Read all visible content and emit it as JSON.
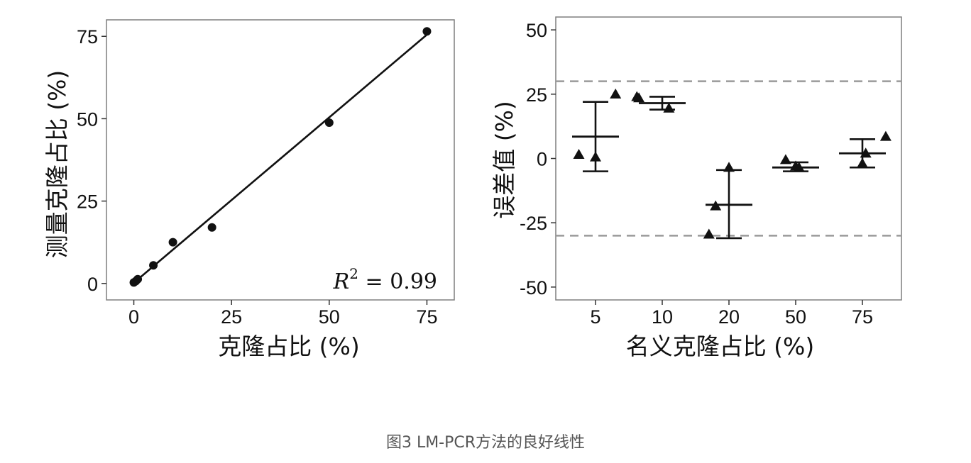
{
  "caption": "图3 LM-PCR方法的良好线性",
  "colors": {
    "ink": "#111111",
    "frame": "#7f7f7f",
    "dashed": "#999999",
    "caption": "#555555"
  },
  "chart_data": [
    {
      "type": "scatter",
      "xlabel": "克隆占比 (%)",
      "ylabel": "测量克隆占比 (%)",
      "xlim": [
        -7,
        82
      ],
      "ylim": [
        -5,
        80
      ],
      "xticks": [
        0,
        25,
        50,
        75
      ],
      "yticks": [
        0,
        25,
        50,
        75
      ],
      "tick_labels_x": [
        "0",
        "25",
        "50",
        "75"
      ],
      "tick_labels_y": [
        "0",
        "25",
        "50",
        "75"
      ],
      "points": [
        {
          "x": 0,
          "y": 0.3
        },
        {
          "x": 0.5,
          "y": 0.7
        },
        {
          "x": 1,
          "y": 1.3
        },
        {
          "x": 5,
          "y": 5.5
        },
        {
          "x": 10,
          "y": 12.5
        },
        {
          "x": 20,
          "y": 17
        },
        {
          "x": 50,
          "y": 48.8
        },
        {
          "x": 75,
          "y": 76.5
        }
      ],
      "fit_line": {
        "x": [
          0,
          75
        ],
        "y": [
          0.2,
          75.5
        ]
      },
      "annotation": {
        "base": "R",
        "sup": "2",
        "text": " = 0.99"
      },
      "grid": false
    },
    {
      "type": "scatter",
      "xlabel": "名义克隆占比 (%)",
      "ylabel": "误差值 (%)",
      "categories": [
        "5",
        "10",
        "20",
        "50",
        "75"
      ],
      "ylim": [
        -55,
        55
      ],
      "yticks": [
        50,
        25,
        0,
        -25,
        -50
      ],
      "tick_labels_y": [
        "50",
        "25",
        "0",
        "-25",
        "-50"
      ],
      "reference_lines": [
        30,
        -30
      ],
      "groups": [
        {
          "category": "5",
          "points": [
            {
              "offset": -0.25,
              "y": 1.5
            },
            {
              "offset": 0,
              "y": 0.5
            },
            {
              "offset": 0.3,
              "y": 25
            }
          ],
          "mean": 8.5,
          "upper": 22,
          "lower": -5
        },
        {
          "category": "10",
          "points": [
            {
              "offset": -0.38,
              "y": 24
            },
            {
              "offset": -0.35,
              "y": 23.5
            },
            {
              "offset": 0.1,
              "y": 19.5
            }
          ],
          "mean": 21.5,
          "upper": 24,
          "lower": 19
        },
        {
          "category": "20",
          "points": [
            {
              "offset": -0.3,
              "y": -29.5
            },
            {
              "offset": -0.2,
              "y": -18.5
            },
            {
              "offset": 0,
              "y": -3.5
            }
          ],
          "mean": -18,
          "upper": -4.5,
          "lower": -31
        },
        {
          "category": "50",
          "points": [
            {
              "offset": -0.15,
              "y": -0.5
            },
            {
              "offset": 0,
              "y": -3
            },
            {
              "offset": 0.05,
              "y": -3.5
            }
          ],
          "mean": -3.5,
          "upper": -1.5,
          "lower": -5
        },
        {
          "category": "75",
          "points": [
            {
              "offset": 0.05,
              "y": 2
            },
            {
              "offset": 0,
              "y": -2
            },
            {
              "offset": 0.35,
              "y": 8.5
            }
          ],
          "mean": 2,
          "upper": 7.5,
          "lower": -3.5
        }
      ],
      "grid": false
    }
  ]
}
